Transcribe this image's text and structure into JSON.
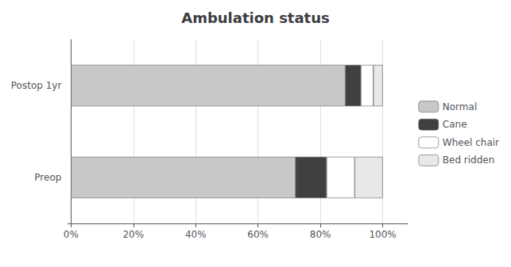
{
  "chart_data": {
    "type": "bar",
    "title": "Ambulation status",
    "orientation": "horizontal",
    "stacked": true,
    "categories": [
      "Postop 1yr",
      "Preop"
    ],
    "series": [
      {
        "name": "Normal",
        "color": "#c8c8c8",
        "values": [
          88,
          72
        ]
      },
      {
        "name": "Cane",
        "color": "#404040",
        "values": [
          5,
          10
        ]
      },
      {
        "name": "Wheel chair",
        "color": "#ffffff",
        "values": [
          4,
          9
        ]
      },
      {
        "name": "Bed ridden",
        "color": "#e8e8e8",
        "values": [
          3,
          9
        ]
      }
    ],
    "xlim": [
      -1,
      108
    ],
    "xticks": [
      {
        "value": 0,
        "label": "0%"
      },
      {
        "value": 20,
        "label": "20%"
      },
      {
        "value": 40,
        "label": "40%"
      },
      {
        "value": 60,
        "label": "60%"
      },
      {
        "value": 80,
        "label": "80%"
      },
      {
        "value": 100,
        "label": "100%"
      }
    ],
    "grid": true,
    "legend": "right"
  }
}
